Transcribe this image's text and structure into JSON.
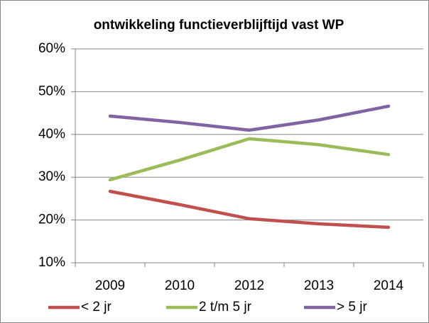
{
  "chart_data": {
    "type": "line",
    "title": "ontwikkeling functieverblijftijd vast WP",
    "categories": [
      "2009",
      "2010",
      "2012",
      "2013",
      "2014"
    ],
    "series": [
      {
        "name": "< 2 jr",
        "color": "#c0504d",
        "values": [
          26.7,
          23.6,
          20.3,
          19.1,
          18.3
        ]
      },
      {
        "name": "2 t/m 5 jr",
        "color": "#9bbb59",
        "values": [
          29.4,
          34.0,
          39.0,
          37.6,
          35.3
        ]
      },
      {
        "name": "> 5 jr",
        "color": "#8064a2",
        "values": [
          44.3,
          42.8,
          41.0,
          43.4,
          46.6
        ]
      }
    ],
    "ylim": [
      10,
      60
    ],
    "yticks": [
      {
        "value": 10,
        "label": "10%"
      },
      {
        "value": 20,
        "label": "20%"
      },
      {
        "value": 30,
        "label": "30%"
      },
      {
        "value": 40,
        "label": "40%"
      },
      {
        "value": 50,
        "label": "50%"
      },
      {
        "value": 60,
        "label": "60%"
      }
    ],
    "grid": true,
    "legend": "bottom"
  }
}
